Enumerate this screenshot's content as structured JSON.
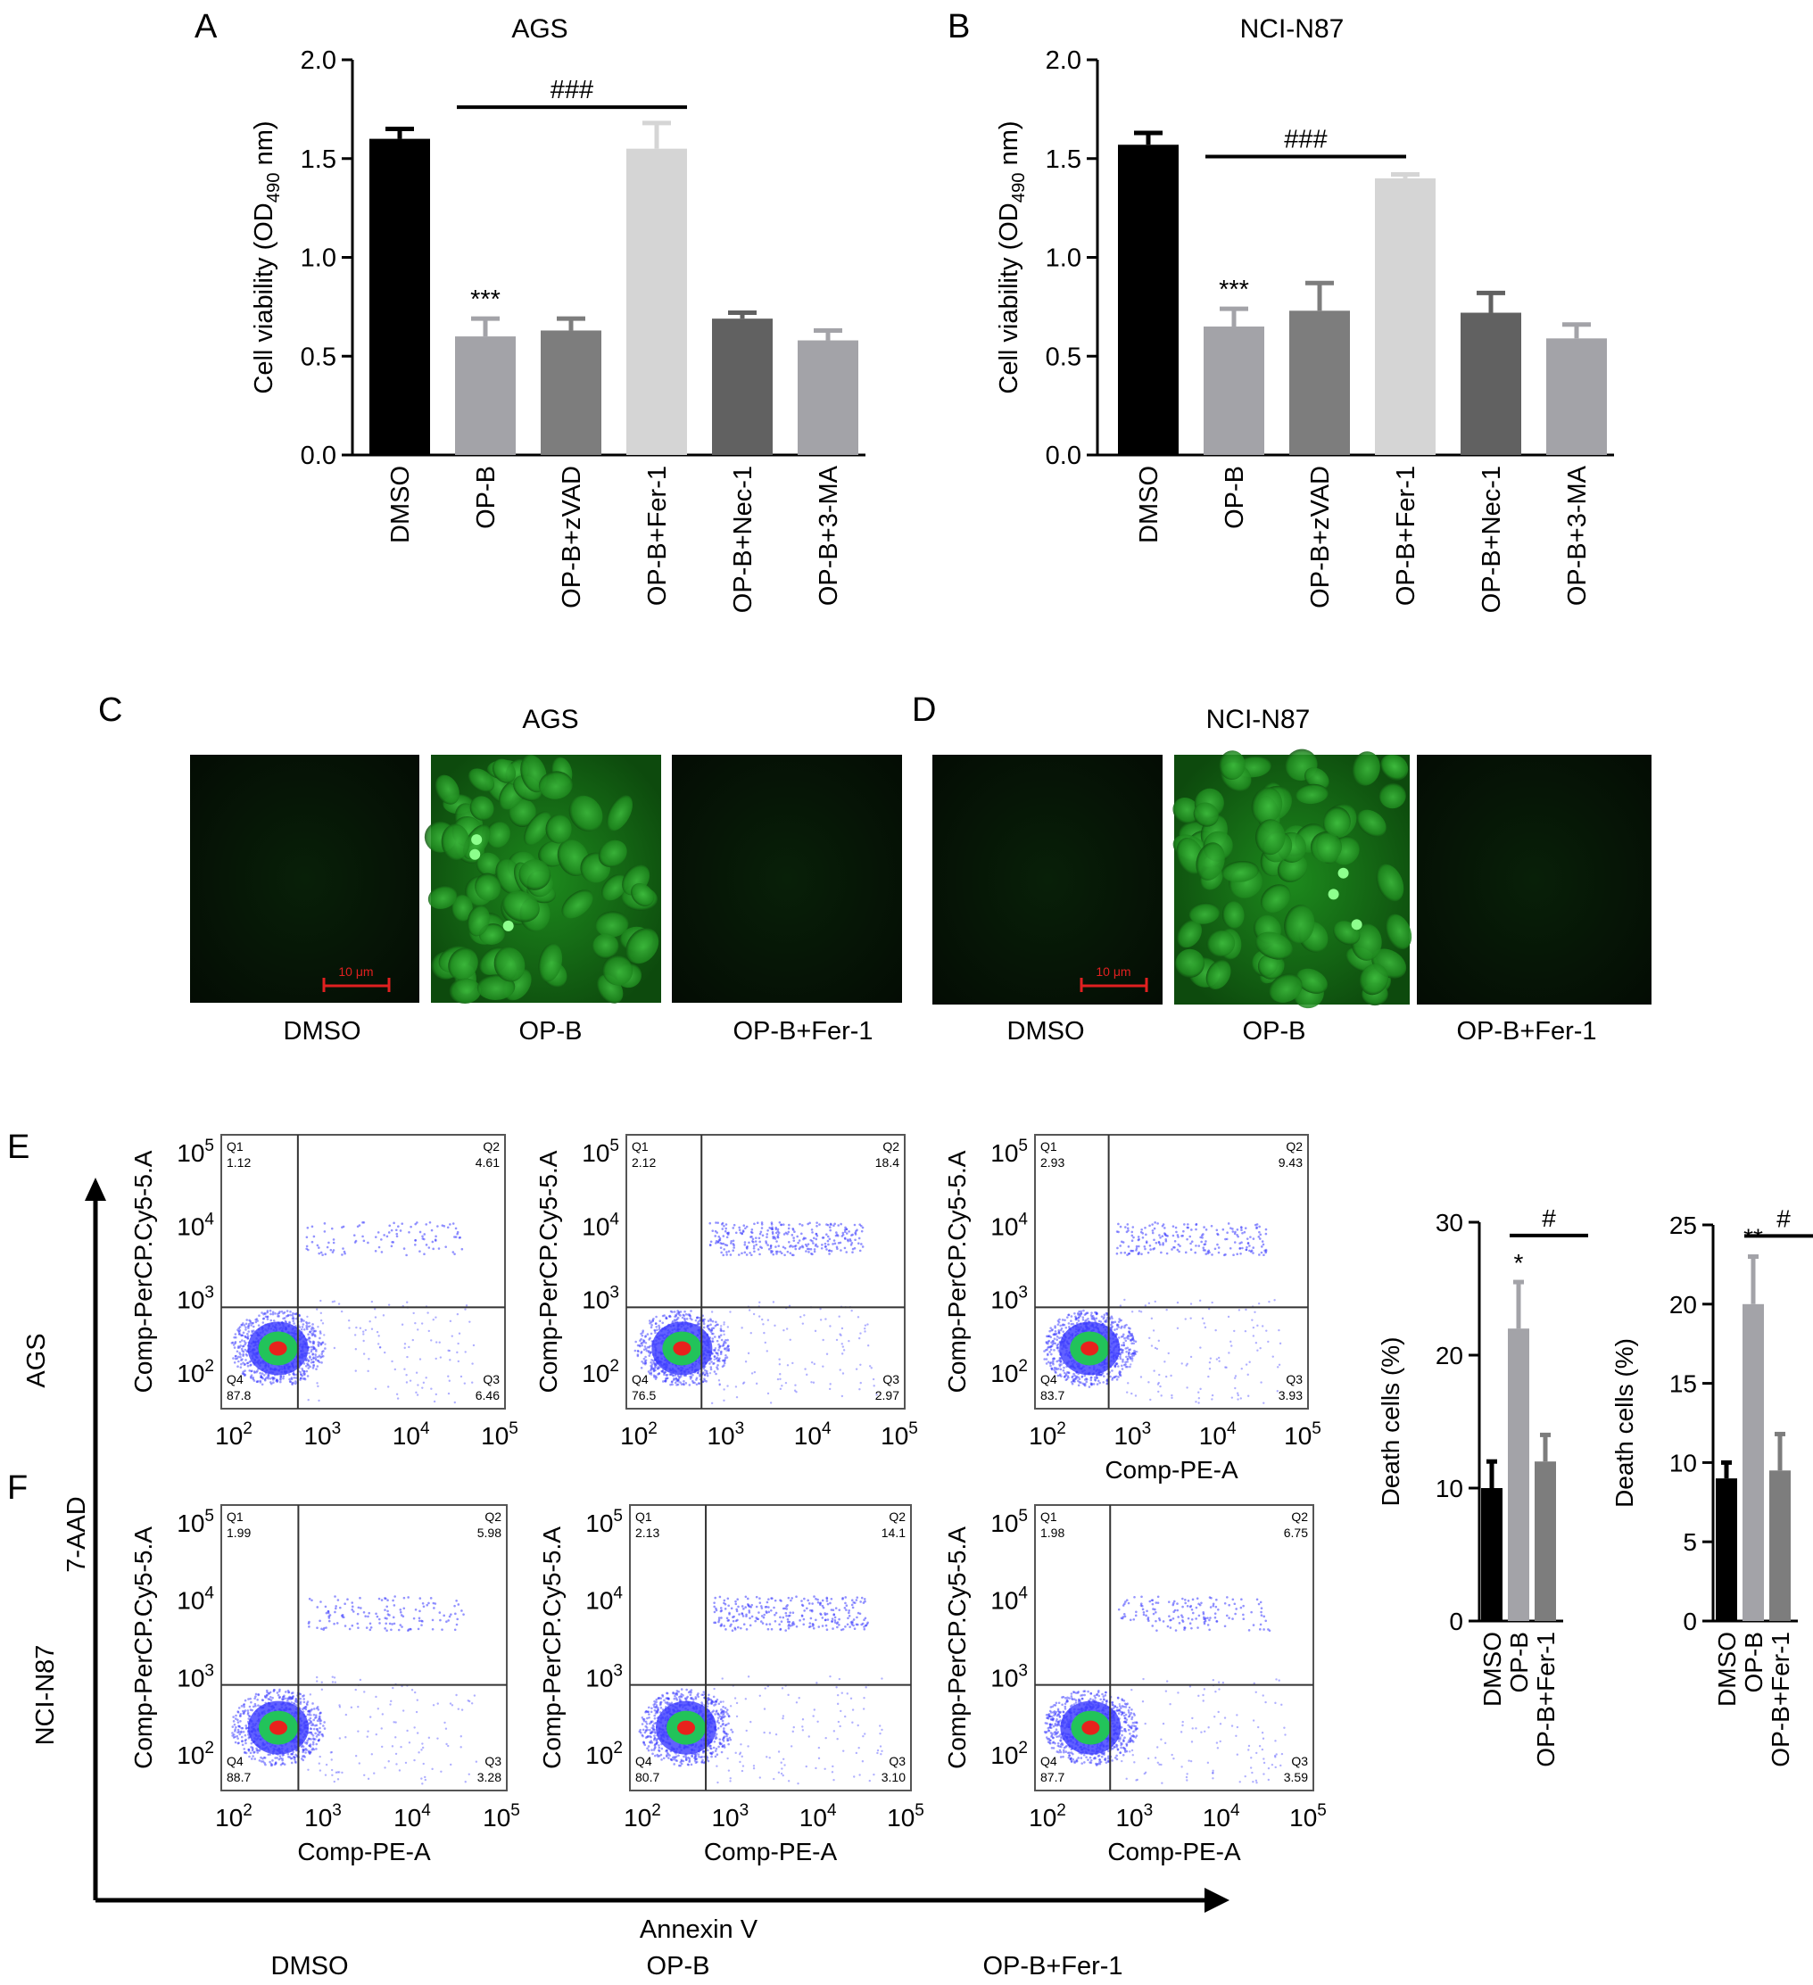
{
  "panels": {
    "A": {
      "letter": "A",
      "title": "AGS"
    },
    "B": {
      "letter": "B",
      "title": "NCI-N87"
    },
    "C": {
      "letter": "C",
      "title": "AGS",
      "labels": [
        "DMSO",
        "OP-B",
        "OP-B+Fer-1"
      ],
      "scale_bar": "10 μm"
    },
    "D": {
      "letter": "D",
      "title": "NCI-N87",
      "labels": [
        "DMSO",
        "OP-B",
        "OP-B+Fer-1"
      ],
      "scale_bar": "10 μm"
    },
    "E": {
      "letter": "E",
      "row_label": "AGS"
    },
    "F": {
      "letter": "F",
      "row_label": "NCI-N87"
    }
  },
  "flow": {
    "y_axis_label": "7-AAD",
    "x_axis_label": "Annexin V",
    "plot_ylabel": "Comp-PerCP.Cy5-5.A",
    "plot_xlabel": "Comp-PE-A",
    "tick_base": "10",
    "tick_exps": [
      "2",
      "3",
      "4",
      "5"
    ],
    "col_labels": [
      "DMSO",
      "OP-B",
      "OP-B+Fer-1"
    ],
    "colors": {
      "density_low": "#3a3aff",
      "density_mid": "#22c35a",
      "density_high": "#e8221c"
    },
    "plots": [
      {
        "row": "AGS",
        "col": "DMSO",
        "quadrants": [
          {
            "q": "Q1",
            "v": "1.12"
          },
          {
            "q": "Q2",
            "v": "4.61"
          },
          {
            "q": "Q3",
            "v": "6.46"
          },
          {
            "q": "Q4",
            "v": "87.8"
          }
        ]
      },
      {
        "row": "AGS",
        "col": "OP-B",
        "quadrants": [
          {
            "q": "Q1",
            "v": "2.12"
          },
          {
            "q": "Q2",
            "v": "18.4"
          },
          {
            "q": "Q3",
            "v": "2.97"
          },
          {
            "q": "Q4",
            "v": "76.5"
          }
        ]
      },
      {
        "row": "AGS",
        "col": "OP-B+Fer-1",
        "quadrants": [
          {
            "q": "Q1",
            "v": "2.93"
          },
          {
            "q": "Q2",
            "v": "9.43"
          },
          {
            "q": "Q3",
            "v": "3.93"
          },
          {
            "q": "Q4",
            "v": "83.7"
          }
        ]
      },
      {
        "row": "NCI-N87",
        "col": "DMSO",
        "quadrants": [
          {
            "q": "Q1",
            "v": "1.99"
          },
          {
            "q": "Q2",
            "v": "5.98"
          },
          {
            "q": "Q3",
            "v": "3.28"
          },
          {
            "q": "Q4",
            "v": "88.7"
          }
        ]
      },
      {
        "row": "NCI-N87",
        "col": "OP-B",
        "quadrants": [
          {
            "q": "Q1",
            "v": "2.13"
          },
          {
            "q": "Q2",
            "v": "14.1"
          },
          {
            "q": "Q3",
            "v": "3.10"
          },
          {
            "q": "Q4",
            "v": "80.7"
          }
        ]
      },
      {
        "row": "NCI-N87",
        "col": "OP-B+Fer-1",
        "quadrants": [
          {
            "q": "Q1",
            "v": "1.98"
          },
          {
            "q": "Q2",
            "v": "6.75"
          },
          {
            "q": "Q3",
            "v": "3.59"
          },
          {
            "q": "Q4",
            "v": "87.7"
          }
        ]
      }
    ]
  },
  "chart_data": [
    {
      "type": "bar",
      "title": "AGS",
      "ylabel_main": "Cell viability (OD",
      "ylabel_sub": "490",
      "ylabel_end": " nm)",
      "ylim": [
        0,
        2.0
      ],
      "yticks": [
        "0.0",
        "0.5",
        "1.0",
        "1.5",
        "2.0"
      ],
      "categories": [
        "DMSO",
        "OP-B",
        "OP-B+zVAD",
        "OP-B+Fer-1",
        "OP-B+Nec-1",
        "OP-B+3-MA"
      ],
      "values": [
        1.6,
        0.6,
        0.63,
        1.55,
        0.69,
        0.58
      ],
      "errors": [
        0.05,
        0.09,
        0.06,
        0.13,
        0.03,
        0.05
      ],
      "colors": [
        "#000000",
        "#a3a3a8",
        "#7d7d7d",
        "#d5d5d5",
        "#616161",
        "#a3a3a8"
      ],
      "stars": [
        {
          "index": 1,
          "text": "***"
        }
      ],
      "bracket": {
        "from": 1,
        "to": 3,
        "y": 1.76,
        "text": "###"
      }
    },
    {
      "type": "bar",
      "title": "NCI-N87",
      "ylabel_main": "Cell viability (OD",
      "ylabel_sub": "490",
      "ylabel_end": " nm)",
      "ylim": [
        0,
        2.0
      ],
      "yticks": [
        "0.0",
        "0.5",
        "1.0",
        "1.5",
        "2.0"
      ],
      "categories": [
        "DMSO",
        "OP-B",
        "OP-B+zVAD",
        "OP-B+Fer-1",
        "OP-B+Nec-1",
        "OP-B+3-MA"
      ],
      "values": [
        1.57,
        0.65,
        0.73,
        1.4,
        0.72,
        0.59
      ],
      "errors": [
        0.06,
        0.09,
        0.14,
        0.02,
        0.1,
        0.07
      ],
      "colors": [
        "#000000",
        "#a3a3a8",
        "#7d7d7d",
        "#d5d5d5",
        "#616161",
        "#a3a3a8"
      ],
      "stars": [
        {
          "index": 1,
          "text": "***"
        }
      ],
      "bracket": {
        "from": 1,
        "to": 3,
        "y": 1.51,
        "text": "###"
      }
    },
    {
      "type": "bar",
      "ylabel": "Death cells (%)",
      "ylim": [
        0,
        30
      ],
      "yticks": [
        "0",
        "10",
        "20",
        "30"
      ],
      "categories": [
        "DMSO",
        "OP-B",
        "OP-B+Fer-1"
      ],
      "values": [
        10,
        22,
        12
      ],
      "errors": [
        2,
        3.5,
        2
      ],
      "colors": [
        "#000000",
        "#a3a3a8",
        "#7d7d7d"
      ],
      "stars": [
        {
          "index": 1,
          "text": "*"
        }
      ],
      "bracket": {
        "from": 1,
        "to": 2,
        "y": 29,
        "text": "#"
      }
    },
    {
      "type": "bar",
      "ylabel": "Death cells (%)",
      "ylim": [
        0,
        25
      ],
      "yticks": [
        "0",
        "5",
        "10",
        "15",
        "20",
        "25"
      ],
      "categories": [
        "DMSO",
        "OP-B",
        "OP-B+Fer-1"
      ],
      "values": [
        9,
        20,
        9.5
      ],
      "errors": [
        1,
        3,
        2.3
      ],
      "colors": [
        "#000000",
        "#a3a3a8",
        "#7d7d7d"
      ],
      "stars": [
        {
          "index": 1,
          "text": "**"
        }
      ],
      "bracket": {
        "from": 1,
        "to": 2,
        "y": 24.3,
        "text": "#"
      }
    }
  ]
}
